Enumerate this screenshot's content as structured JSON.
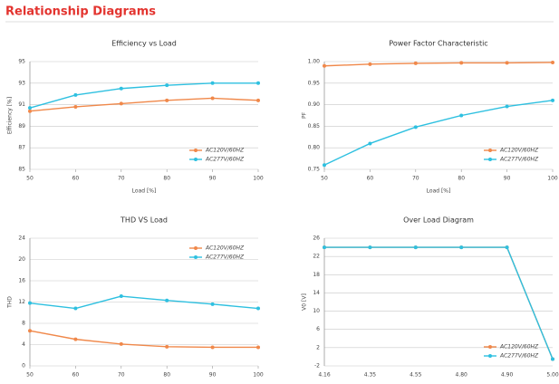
{
  "title": "Relationship Diagrams",
  "chart_data": [
    {
      "type": "line",
      "title": "Efficiency vs Load",
      "xlabel": "Load [%]",
      "ylabel": "Efficiency [%]",
      "x": [
        50,
        60,
        70,
        80,
        90,
        100
      ],
      "xlim": [
        50,
        100
      ],
      "xticks": [
        50,
        60,
        70,
        80,
        90,
        100
      ],
      "ylim": [
        85,
        95
      ],
      "yticks": [
        85,
        87,
        89,
        91,
        93,
        95
      ],
      "grid": true,
      "legend": "lower right",
      "series": [
        {
          "name": "AC120V/60HZ",
          "color": "#f0884a",
          "values": [
            90.4,
            90.8,
            91.1,
            91.4,
            91.6,
            91.4
          ]
        },
        {
          "name": "AC277V/60HZ",
          "color": "#2ec0e0",
          "values": [
            90.7,
            91.9,
            92.5,
            92.8,
            93.0,
            93.0
          ]
        }
      ]
    },
    {
      "type": "line",
      "title": "Power Factor Characteristic",
      "xlabel": "Load [%]",
      "ylabel": "PF",
      "x": [
        50,
        60,
        70,
        80,
        90,
        100
      ],
      "xlim": [
        50,
        100
      ],
      "xticks": [
        50,
        60,
        70,
        80,
        90,
        100
      ],
      "ylim": [
        0.75,
        1
      ],
      "yticks": [
        0.75,
        {
          "value": 0.8,
          "label": "0.80"
        },
        0.85,
        {
          "value": 0.9,
          "label": "0.90"
        },
        0.95,
        {
          "value": 1,
          "label": "1.00"
        }
      ],
      "grid": true,
      "legend": "lower right",
      "series": [
        {
          "name": "AC120V/60HZ",
          "color": "#f0884a",
          "values": [
            0.99,
            0.994,
            0.996,
            0.997,
            0.997,
            0.998
          ]
        },
        {
          "name": "AC277V/60HZ",
          "color": "#2ec0e0",
          "values": [
            0.76,
            0.81,
            0.848,
            0.875,
            0.896,
            0.91
          ]
        }
      ]
    },
    {
      "type": "line",
      "title": "THD VS Load",
      "ylabel": "THD",
      "x": [
        50,
        60,
        70,
        80,
        90,
        100
      ],
      "xlim": [
        50,
        100
      ],
      "xticks": [
        50,
        60,
        70,
        80,
        90,
        100
      ],
      "ylim": [
        0,
        24
      ],
      "yticks": [
        0,
        4,
        8,
        12,
        16,
        20,
        24
      ],
      "grid": true,
      "legend": "upper right",
      "series": [
        {
          "name": "AC120V/60HZ",
          "color": "#f0884a",
          "values": [
            6.6,
            5.0,
            4.1,
            3.6,
            3.5,
            3.5
          ]
        },
        {
          "name": "AC277V/60HZ",
          "color": "#2ec0e0",
          "values": [
            11.8,
            10.8,
            13.1,
            12.3,
            11.6,
            10.8
          ]
        }
      ]
    },
    {
      "type": "line",
      "title": "Over Load Diagram",
      "ylabel": "V0 [V]",
      "categories": [
        "4.16",
        "4.35",
        "4.55",
        "4.80",
        "4.90",
        "5.00"
      ],
      "ylim": [
        -2,
        26
      ],
      "yticks": [
        -2,
        2,
        6,
        10,
        14,
        18,
        22,
        26
      ],
      "grid": true,
      "legend": "lower right",
      "series": [
        {
          "name": "AC120V/60HZ",
          "color": "#f0884a",
          "values": [
            24,
            24,
            24,
            24,
            24,
            -0.5
          ]
        },
        {
          "name": "AC277V/60HZ",
          "color": "#2ec0e0",
          "values": [
            24,
            24,
            24,
            24,
            24,
            -0.5
          ]
        }
      ]
    }
  ]
}
